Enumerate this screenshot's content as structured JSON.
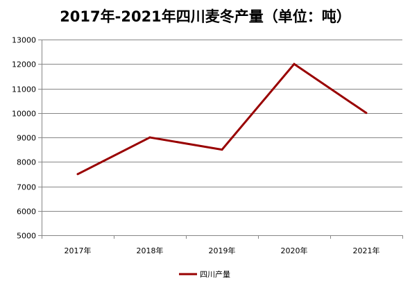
{
  "chart_data": {
    "type": "line",
    "title": "2017年-2021年四川麦冬产量（单位：吨）",
    "categories": [
      "2017年",
      "2018年",
      "2019年",
      "2020年",
      "2021年"
    ],
    "series": [
      {
        "name": "四川产量",
        "values": [
          7500,
          9000,
          8500,
          12000,
          10000
        ],
        "color": "#990000"
      }
    ],
    "ylim": [
      5000,
      13000
    ],
    "yticks": [
      "5000",
      "6000",
      "7000",
      "8000",
      "9000",
      "10000",
      "11000",
      "12000",
      "13000"
    ],
    "grid": true,
    "gridline_color": "#868686",
    "legend": "bottom"
  }
}
